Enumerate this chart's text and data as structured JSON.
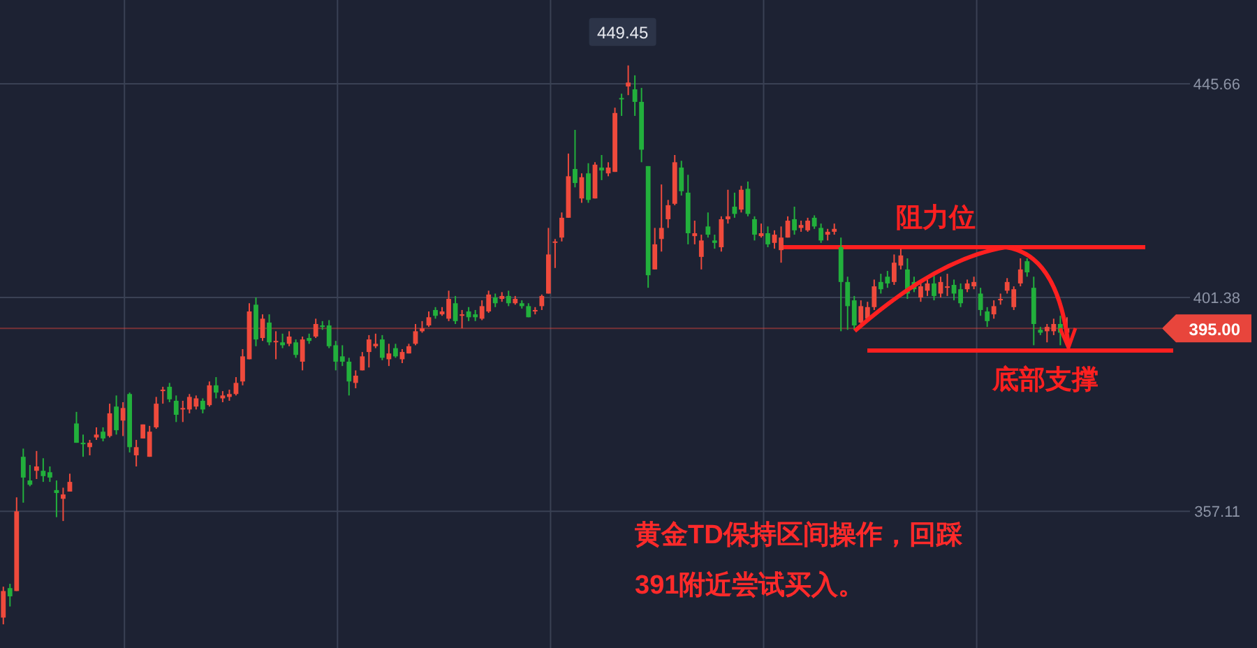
{
  "chart_data": {
    "type": "candlestick",
    "categories": [
      null,
      null,
      null,
      null,
      null,
      null,
      null,
      null,
      null,
      null,
      null,
      null,
      null,
      null,
      null,
      null,
      null,
      null,
      null,
      null,
      null,
      null,
      null,
      null,
      null,
      null,
      null,
      null,
      null,
      null,
      null,
      null,
      null,
      null,
      null,
      null,
      null,
      null,
      null,
      null,
      null,
      null,
      null,
      null,
      null,
      null,
      null,
      null,
      null,
      null,
      null,
      null,
      null,
      null,
      null,
      null,
      null,
      null,
      null,
      null,
      null,
      null,
      null,
      null,
      null,
      null,
      null,
      null,
      null,
      null,
      null,
      null,
      null,
      null,
      null,
      null,
      null,
      null,
      null,
      null,
      null,
      null,
      null,
      null,
      null,
      null,
      null,
      null,
      null,
      null,
      null,
      null,
      null,
      null,
      null,
      null,
      null,
      null,
      null,
      null,
      null,
      null,
      null,
      null,
      null,
      null,
      null,
      null,
      null,
      null,
      null,
      null,
      null,
      null,
      null,
      null,
      null,
      null,
      null,
      null,
      null,
      null,
      null,
      null,
      null,
      null,
      null,
      null,
      null,
      null,
      null,
      null,
      null,
      null,
      null,
      null,
      null,
      null,
      null,
      null,
      null,
      null,
      null,
      null,
      null,
      null,
      null,
      null,
      null,
      null,
      null,
      null,
      null,
      null,
      null,
      null,
      null,
      null,
      null,
      null,
      null,
      null,
      null,
      null,
      null,
      null,
      null,
      null,
      null,
      null,
      null,
      null,
      null,
      null,
      null,
      null,
      null,
      null,
      null
    ],
    "ohlc": [
      [
        335.1,
        341.5,
        333.7,
        340.6
      ],
      [
        341.2,
        342.1,
        337.4,
        339.5
      ],
      [
        340.6,
        360.0,
        340.6,
        357.1
      ],
      [
        368.4,
        370.1,
        358.9,
        364.1
      ],
      [
        363.5,
        366.7,
        362.3,
        362.6
      ],
      [
        365.5,
        369.6,
        363.8,
        366.4
      ],
      [
        365.5,
        368.1,
        363.2,
        364.4
      ],
      [
        365.2,
        366.4,
        363.2,
        364.1
      ],
      [
        361.5,
        363.5,
        355.9,
        360.9
      ],
      [
        359.7,
        362.0,
        355.1,
        360.6
      ],
      [
        361.2,
        364.9,
        361.2,
        363.2
      ],
      [
        375.3,
        377.7,
        371.3,
        371.3
      ],
      [
        371.3,
        373.0,
        368.4,
        371.0
      ],
      [
        370.4,
        371.9,
        368.7,
        371.3
      ],
      [
        372.4,
        374.5,
        371.9,
        373.0
      ],
      [
        373.6,
        374.5,
        371.6,
        372.2
      ],
      [
        372.7,
        379.4,
        372.4,
        377.4
      ],
      [
        378.8,
        381.1,
        373.0,
        373.9
      ],
      [
        375.9,
        379.7,
        372.7,
        378.5
      ],
      [
        381.4,
        381.7,
        369.3,
        370.4
      ],
      [
        368.7,
        371.9,
        366.4,
        370.4
      ],
      [
        372.2,
        375.1,
        372.2,
        375.1
      ],
      [
        368.4,
        374.8,
        368.4,
        373.6
      ],
      [
        374.5,
        380.8,
        374.2,
        379.4
      ],
      [
        382.0,
        382.9,
        379.4,
        382.3
      ],
      [
        382.9,
        383.7,
        379.7,
        380.3
      ],
      [
        380.0,
        381.1,
        375.6,
        377.1
      ],
      [
        378.2,
        380.0,
        375.6,
        378.5
      ],
      [
        378.2,
        381.4,
        377.4,
        380.8
      ],
      [
        378.8,
        381.1,
        378.2,
        380.5
      ],
      [
        380.0,
        380.5,
        377.4,
        378.2
      ],
      [
        379.1,
        384.0,
        378.8,
        383.2
      ],
      [
        383.2,
        384.9,
        380.5,
        381.7
      ],
      [
        380.5,
        382.0,
        379.7,
        381.1
      ],
      [
        380.8,
        382.3,
        380.0,
        381.4
      ],
      [
        381.4,
        384.9,
        381.1,
        383.7
      ],
      [
        384.0,
        390.7,
        383.2,
        389.2
      ],
      [
        388.6,
        400.2,
        388.6,
        398.5
      ],
      [
        399.9,
        401.4,
        391.3,
        392.7
      ],
      [
        393.0,
        397.9,
        392.4,
        397.0
      ],
      [
        396.2,
        397.9,
        391.5,
        392.1
      ],
      [
        392.3,
        394.4,
        388.6,
        392.4
      ],
      [
        392.1,
        393.9,
        390.9,
        391.5
      ],
      [
        391.8,
        394.4,
        391.3,
        393.3
      ],
      [
        392.1,
        392.7,
        388.9,
        389.5
      ],
      [
        388.1,
        393.3,
        386.3,
        392.7
      ],
      [
        393.0,
        393.9,
        391.8,
        392.4
      ],
      [
        393.3,
        397.0,
        393.0,
        395.9
      ],
      [
        395.6,
        396.5,
        394.7,
        395.3
      ],
      [
        395.6,
        396.7,
        390.9,
        391.3
      ],
      [
        391.5,
        392.4,
        386.3,
        388.1
      ],
      [
        389.2,
        391.5,
        387.2,
        388.1
      ],
      [
        388.1,
        388.9,
        381.1,
        384.0
      ],
      [
        383.7,
        386.3,
        382.6,
        385.2
      ],
      [
        386.3,
        390.1,
        386.3,
        389.2
      ],
      [
        390.1,
        393.6,
        386.9,
        392.7
      ],
      [
        391.3,
        393.9,
        390.9,
        391.8
      ],
      [
        392.7,
        393.6,
        388.4,
        388.9
      ],
      [
        388.6,
        391.8,
        387.2,
        389.8
      ],
      [
        390.9,
        391.8,
        388.9,
        389.2
      ],
      [
        388.6,
        390.7,
        387.8,
        390.1
      ],
      [
        389.8,
        391.8,
        389.8,
        391.3
      ],
      [
        391.8,
        395.9,
        391.5,
        394.4
      ],
      [
        394.4,
        396.5,
        394.1,
        395.0
      ],
      [
        395.6,
        398.5,
        395.3,
        397.3
      ],
      [
        398.8,
        399.4,
        397.0,
        397.6
      ],
      [
        397.9,
        399.4,
        397.6,
        398.5
      ],
      [
        397.0,
        402.8,
        396.5,
        401.1
      ],
      [
        400.2,
        401.7,
        395.9,
        396.5
      ],
      [
        397.6,
        398.8,
        395.0,
        397.9
      ],
      [
        398.5,
        399.4,
        396.5,
        397.3
      ],
      [
        397.9,
        398.8,
        396.5,
        397.3
      ],
      [
        397.0,
        400.8,
        396.7,
        399.6
      ],
      [
        398.5,
        402.8,
        398.2,
        402.0
      ],
      [
        401.4,
        402.2,
        399.4,
        400.2
      ],
      [
        401.1,
        402.5,
        400.5,
        401.7
      ],
      [
        401.7,
        402.8,
        399.6,
        400.2
      ],
      [
        400.2,
        401.7,
        399.9,
        401.1
      ],
      [
        400.2,
        400.8,
        399.1,
        399.6
      ],
      [
        399.6,
        400.2,
        397.3,
        397.3
      ],
      [
        398.5,
        399.4,
        397.9,
        398.8
      ],
      [
        399.6,
        402.0,
        398.8,
        401.7
      ],
      [
        402.2,
        415.8,
        402.2,
        410.3
      ],
      [
        412.7,
        413.5,
        407.5,
        413.0
      ],
      [
        413.8,
        419.0,
        413.0,
        417.9
      ],
      [
        417.9,
        431.2,
        417.9,
        426.5
      ],
      [
        428.0,
        436.1,
        424.2,
        425.1
      ],
      [
        421.9,
        427.1,
        421.0,
        426.3
      ],
      [
        427.1,
        429.2,
        421.0,
        421.6
      ],
      [
        421.9,
        429.4,
        421.9,
        428.9
      ],
      [
        428.3,
        430.9,
        425.7,
        427.7
      ],
      [
        427.1,
        429.4,
        426.5,
        428.3
      ],
      [
        427.4,
        440.7,
        427.4,
        439.6
      ],
      [
        442.7,
        443.6,
        439.0,
        442.5
      ],
      [
        445.1,
        449.45,
        443.3,
        445.9
      ],
      [
        444.5,
        447.4,
        439.0,
        441.9
      ],
      [
        441.9,
        444.8,
        429.4,
        432.0
      ],
      [
        428.6,
        428.6,
        403.4,
        406.0
      ],
      [
        407.2,
        415.8,
        407.2,
        412.4
      ],
      [
        413.5,
        424.8,
        410.9,
        415.8
      ],
      [
        417.6,
        421.6,
        415.8,
        420.5
      ],
      [
        420.8,
        430.9,
        420.5,
        429.4
      ],
      [
        428.3,
        429.7,
        422.5,
        423.4
      ],
      [
        423.1,
        426.8,
        412.4,
        414.7
      ],
      [
        414.1,
        417.3,
        412.4,
        414.7
      ],
      [
        409.8,
        414.4,
        407.2,
        413.2
      ],
      [
        416.1,
        419.0,
        413.8,
        414.4
      ],
      [
        413.2,
        414.4,
        411.5,
        412.7
      ],
      [
        411.8,
        418.2,
        410.9,
        417.6
      ],
      [
        417.6,
        423.7,
        416.7,
        418.2
      ],
      [
        420.2,
        423.1,
        417.9,
        418.7
      ],
      [
        419.6,
        424.5,
        419.0,
        423.7
      ],
      [
        423.9,
        425.4,
        418.2,
        418.7
      ],
      [
        417.6,
        418.2,
        413.2,
        414.4
      ],
      [
        414.1,
        416.7,
        413.8,
        414.7
      ],
      [
        414.7,
        416.1,
        411.8,
        412.4
      ],
      [
        412.7,
        415.3,
        411.5,
        414.4
      ],
      [
        411.2,
        416.1,
        408.6,
        413.8
      ],
      [
        413.8,
        418.2,
        413.8,
        417.3
      ],
      [
        417.6,
        420.2,
        414.4,
        415.3
      ],
      [
        415.8,
        417.3,
        415.0,
        416.4
      ],
      [
        415.3,
        417.9,
        415.0,
        417.3
      ],
      [
        417.9,
        418.4,
        415.6,
        416.1
      ],
      [
        415.8,
        416.7,
        412.7,
        413.2
      ],
      [
        414.4,
        415.6,
        413.2,
        415.0
      ],
      [
        415.0,
        416.7,
        414.4,
        415.6
      ],
      [
        411.8,
        413.8,
        394.4,
        404.6
      ],
      [
        404.6,
        405.7,
        394.7,
        399.6
      ],
      [
        400.8,
        401.7,
        394.7,
        395.6
      ],
      [
        396.2,
        400.8,
        395.9,
        399.6
      ],
      [
        397.0,
        400.5,
        396.5,
        399.4
      ],
      [
        399.4,
        405.1,
        398.8,
        403.7
      ],
      [
        404.6,
        406.3,
        402.2,
        403.1
      ],
      [
        405.7,
        406.9,
        403.4,
        404.3
      ],
      [
        404.6,
        410.3,
        404.0,
        408.6
      ],
      [
        408.0,
        411.5,
        407.2,
        410.1
      ],
      [
        407.2,
        409.5,
        401.1,
        402.2
      ],
      [
        404.6,
        405.7,
        402.5,
        403.1
      ],
      [
        401.4,
        404.6,
        400.5,
        403.7
      ],
      [
        402.8,
        405.1,
        401.7,
        404.3
      ],
      [
        404.3,
        406.0,
        400.8,
        401.7
      ],
      [
        402.2,
        405.7,
        401.4,
        404.6
      ],
      [
        403.4,
        406.3,
        401.7,
        403.7
      ],
      [
        404.0,
        405.1,
        400.8,
        402.2
      ],
      [
        403.1,
        404.3,
        399.4,
        400.2
      ],
      [
        403.1,
        405.1,
        402.5,
        404.3
      ],
      [
        403.7,
        405.7,
        403.1,
        404.6
      ],
      [
        402.2,
        403.4,
        397.6,
        398.8
      ],
      [
        398.5,
        399.4,
        395.3,
        396.5
      ],
      [
        397.9,
        400.8,
        397.0,
        399.6
      ],
      [
        400.8,
        402.2,
        399.9,
        401.1
      ],
      [
        402.8,
        405.4,
        402.2,
        404.6
      ],
      [
        399.4,
        403.7,
        398.8,
        403.1
      ],
      [
        404.3,
        409.5,
        403.7,
        407.2
      ],
      [
        408.9,
        409.5,
        405.7,
        406.6
      ],
      [
        403.4,
        405.7,
        391.5,
        395.9
      ],
      [
        394.7,
        395.3,
        393.6,
        394.1
      ],
      [
        394.4,
        395.9,
        392.1,
        395.3
      ],
      [
        394.4,
        397.0,
        393.6,
        395.9
      ],
      [
        395.9,
        397.6,
        391.5,
        394.1
      ],
      [
        394.1,
        397.3,
        393.6,
        395.0
      ],
      null,
      null,
      null,
      null,
      null,
      null,
      null,
      null,
      null,
      null,
      null,
      null,
      null,
      null,
      null,
      null,
      null,
      null
    ],
    "ylim": [
      328.8,
      463.0
    ],
    "yticks": [
      357.11,
      401.38,
      445.66
    ],
    "grid": true,
    "ref_lines": [
      {
        "axis": "y",
        "value": 395.0,
        "label": "395.00",
        "color": "#e8453c"
      },
      {
        "axis": "y",
        "value": 411.8,
        "label": "阻力位",
        "color": "#ff2020"
      },
      {
        "axis": "y",
        "value": 390.4,
        "label": "底部支撑",
        "color": "#ff2020"
      }
    ],
    "annotations": [
      "449.45",
      "黄金TD保持区间操作，回踩",
      "391附近尝试买入。"
    ]
  }
}
